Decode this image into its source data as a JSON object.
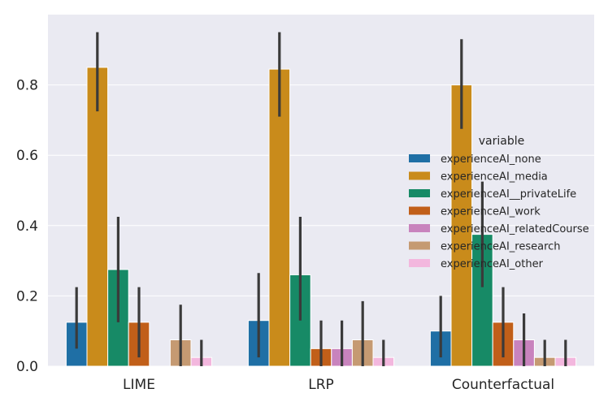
{
  "chart_data": {
    "type": "bar",
    "categories": [
      "LIME",
      "LRP",
      "Counterfactual"
    ],
    "series": [
      {
        "name": "experienceAI_none",
        "color": "#1f6fa5",
        "values": [
          0.125,
          0.13,
          0.1
        ],
        "ci": [
          [
            0.05,
            0.225
          ],
          [
            0.025,
            0.265
          ],
          [
            0.025,
            0.2
          ]
        ]
      },
      {
        "name": "experienceAI_media",
        "color": "#c98b1b",
        "values": [
          0.85,
          0.845,
          0.8
        ],
        "ci": [
          [
            0.725,
            0.95
          ],
          [
            0.71,
            0.95
          ],
          [
            0.675,
            0.93
          ]
        ]
      },
      {
        "name": "experienceAI__privateLife",
        "color": "#178a66",
        "values": [
          0.275,
          0.26,
          0.375
        ],
        "ci": [
          [
            0.125,
            0.425
          ],
          [
            0.13,
            0.425
          ],
          [
            0.225,
            0.525
          ]
        ]
      },
      {
        "name": "experienceAI_work",
        "color": "#c15f19",
        "values": [
          0.125,
          0.05,
          0.125
        ],
        "ci": [
          [
            0.025,
            0.225
          ],
          [
            0.0,
            0.13
          ],
          [
            0.025,
            0.225
          ]
        ]
      },
      {
        "name": "experienceAI_relatedCourse",
        "color": "#c883bd",
        "values": [
          0.0,
          0.05,
          0.075
        ],
        "ci": [
          [
            0.0,
            0.0
          ],
          [
            0.0,
            0.13
          ],
          [
            0.0,
            0.15
          ]
        ]
      },
      {
        "name": "experienceAI_research",
        "color": "#c59a72",
        "values": [
          0.075,
          0.075,
          0.025
        ],
        "ci": [
          [
            0.0,
            0.175
          ],
          [
            0.0,
            0.185
          ],
          [
            0.0,
            0.075
          ]
        ]
      },
      {
        "name": "experienceAI_other",
        "color": "#f3b7de",
        "values": [
          0.025,
          0.025,
          0.025
        ],
        "ci": [
          [
            0.0,
            0.075
          ],
          [
            0.0,
            0.075
          ],
          [
            0.0,
            0.075
          ]
        ]
      }
    ],
    "yticks": [
      0.0,
      0.2,
      0.4,
      0.6,
      0.8
    ],
    "ylim": [
      0,
      1.0
    ],
    "title": "",
    "xlabel": "",
    "ylabel": "",
    "legend": {
      "title": "variable",
      "placement": "center-right"
    },
    "grid": true,
    "style": {
      "plot_background": "#eaeaf2",
      "grid_color": "#ffffff",
      "errorbar_color": "#3a3a3a"
    }
  }
}
